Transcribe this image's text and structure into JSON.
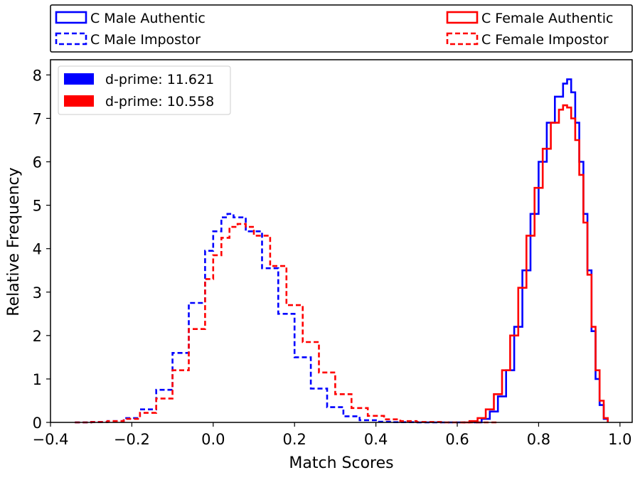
{
  "chart_data": {
    "type": "line",
    "xlabel": "Match Scores",
    "ylabel": "Relative Frequency",
    "xlim": [
      -0.4,
      1.03
    ],
    "ylim": [
      0,
      8.35
    ],
    "xticks": [
      -0.4,
      -0.2,
      0.0,
      0.2,
      0.4,
      0.6,
      0.8,
      1.0
    ],
    "xtick_labels": [
      "−0.4",
      "−0.2",
      "0.0",
      "0.2",
      "0.4",
      "0.6",
      "0.8",
      "1.0"
    ],
    "yticks": [
      0,
      1,
      2,
      3,
      4,
      5,
      6,
      7,
      8
    ],
    "ytick_labels": [
      "0",
      "1",
      "2",
      "3",
      "4",
      "5",
      "6",
      "7",
      "8"
    ],
    "series": [
      {
        "name": "C Male Authentic",
        "color": "#0000ff",
        "style": "solid",
        "x": [
          0.64,
          0.66,
          0.68,
          0.7,
          0.72,
          0.74,
          0.76,
          0.78,
          0.8,
          0.82,
          0.84,
          0.86,
          0.87,
          0.88,
          0.89,
          0.9,
          0.91,
          0.92,
          0.93,
          0.94,
          0.95,
          0.96,
          0.97
        ],
        "values": [
          0.0,
          0.08,
          0.25,
          0.6,
          1.2,
          2.2,
          3.5,
          4.8,
          6.0,
          6.9,
          7.5,
          7.8,
          7.9,
          7.6,
          6.9,
          6.0,
          4.8,
          3.5,
          2.1,
          1.0,
          0.4,
          0.08,
          0.0
        ]
      },
      {
        "name": "C Male Impostor",
        "color": "#0000ff",
        "style": "dashed",
        "x": [
          -0.34,
          -0.3,
          -0.26,
          -0.22,
          -0.18,
          -0.14,
          -0.1,
          -0.06,
          -0.02,
          0.0,
          0.02,
          0.035,
          0.05,
          0.08,
          0.12,
          0.16,
          0.2,
          0.24,
          0.28,
          0.32,
          0.36,
          0.4,
          0.44,
          0.5,
          0.56,
          0.62
        ],
        "values": [
          0.0,
          0.01,
          0.03,
          0.1,
          0.3,
          0.75,
          1.6,
          2.75,
          3.95,
          4.4,
          4.72,
          4.8,
          4.72,
          4.4,
          3.55,
          2.5,
          1.5,
          0.78,
          0.35,
          0.14,
          0.05,
          0.015,
          0.005,
          0.0,
          0.0,
          0.0
        ]
      },
      {
        "name": "C Female Authentic",
        "color": "#ff0000",
        "style": "solid",
        "x": [
          0.61,
          0.63,
          0.65,
          0.67,
          0.69,
          0.71,
          0.73,
          0.75,
          0.77,
          0.79,
          0.81,
          0.83,
          0.85,
          0.86,
          0.87,
          0.88,
          0.89,
          0.9,
          0.91,
          0.92,
          0.93,
          0.94,
          0.95,
          0.96,
          0.97
        ],
        "values": [
          0.0,
          0.03,
          0.1,
          0.3,
          0.65,
          1.2,
          2.0,
          3.1,
          4.3,
          5.4,
          6.3,
          6.9,
          7.2,
          7.3,
          7.25,
          7.0,
          6.5,
          5.7,
          4.6,
          3.4,
          2.2,
          1.2,
          0.5,
          0.1,
          0.0
        ]
      },
      {
        "name": "C Female Impostor",
        "color": "#ff0000",
        "style": "dashed",
        "x": [
          -0.34,
          -0.3,
          -0.26,
          -0.22,
          -0.18,
          -0.14,
          -0.1,
          -0.06,
          -0.02,
          0.0,
          0.02,
          0.04,
          0.06,
          0.08,
          0.1,
          0.14,
          0.18,
          0.22,
          0.26,
          0.3,
          0.34,
          0.38,
          0.42,
          0.46,
          0.5,
          0.56,
          0.62,
          0.7
        ],
        "values": [
          0.0,
          0.01,
          0.03,
          0.08,
          0.22,
          0.55,
          1.2,
          2.15,
          3.3,
          3.85,
          4.25,
          4.5,
          4.57,
          4.5,
          4.3,
          3.6,
          2.7,
          1.85,
          1.15,
          0.65,
          0.33,
          0.15,
          0.07,
          0.03,
          0.01,
          0.0,
          0.0,
          0.0
        ]
      }
    ],
    "legend_top": {
      "position": "above",
      "entries": [
        {
          "label": "C Male Authentic",
          "color": "#0000ff",
          "style": "solid"
        },
        {
          "label": "C Male Impostor",
          "color": "#0000ff",
          "style": "dashed"
        },
        {
          "label": "C Female Authentic",
          "color": "#ff0000",
          "style": "solid"
        },
        {
          "label": "C Female Impostor",
          "color": "#ff0000",
          "style": "dashed"
        }
      ]
    },
    "legend_inner": {
      "position": "upper-left",
      "entries": [
        {
          "label": "d-prime: 11.621",
          "color": "#0000ff"
        },
        {
          "label": "d-prime: 10.558",
          "color": "#ff0000"
        }
      ]
    }
  }
}
